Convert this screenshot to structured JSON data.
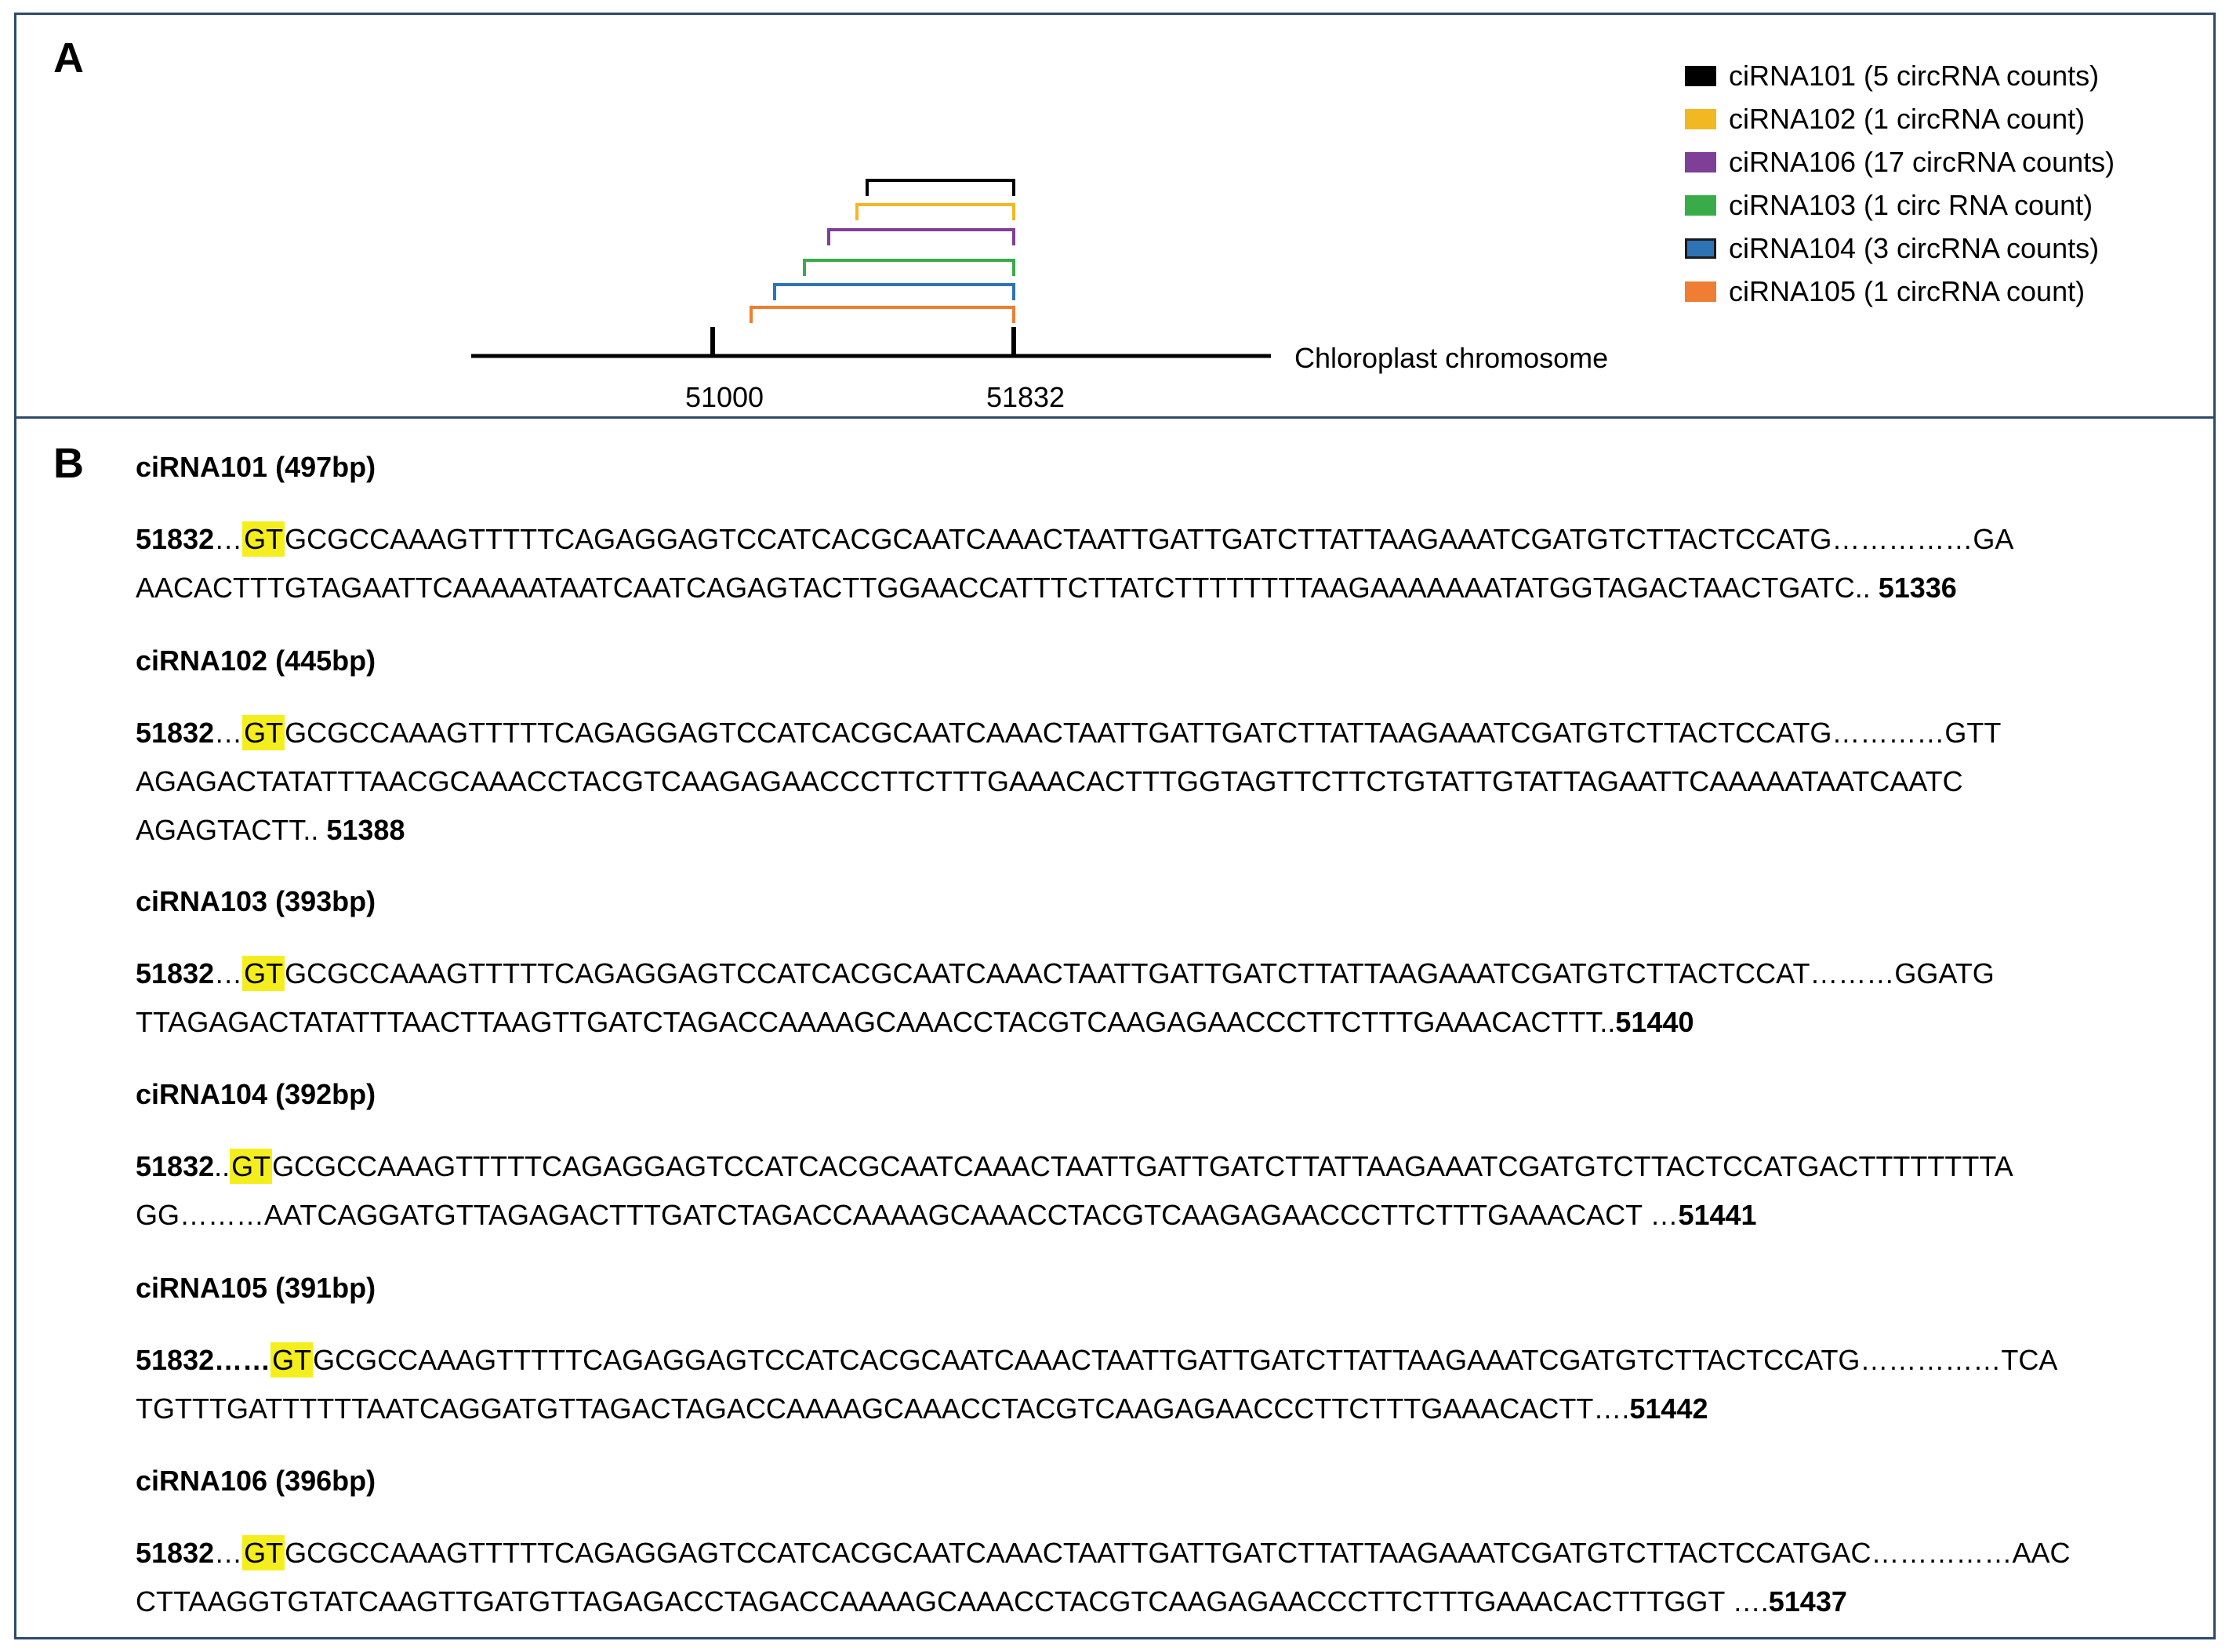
{
  "panel_a": {
    "letter": "A",
    "chromosome_label": "Chloroplast chromosome",
    "ticks": [
      {
        "label": "51000",
        "value": 51000
      },
      {
        "label": "51832",
        "value": 51832
      }
    ],
    "arcs": [
      {
        "name": "ciRNA101",
        "start": 51336,
        "end": 51832,
        "color": "#000000"
      },
      {
        "name": "ciRNA102",
        "start": 51388,
        "end": 51832,
        "color": "#f2b824"
      },
      {
        "name": "ciRNA106",
        "start": 51437,
        "end": 51832,
        "color": "#7f3f98"
      },
      {
        "name": "ciRNA103",
        "start": 51440,
        "end": 51832,
        "color": "#3aab49"
      },
      {
        "name": "ciRNA104",
        "start": 51441,
        "end": 51832,
        "color": "#2e74b5"
      },
      {
        "name": "ciRNA105",
        "start": 51442,
        "end": 51832,
        "color": "#ef7d33"
      }
    ],
    "legend": [
      {
        "name": "ciRNA101",
        "count": "(5 circRNA counts)",
        "color": "#000000"
      },
      {
        "name": "ciRNA102",
        "count": "(1 circRNA count)",
        "color": "#f2b824"
      },
      {
        "name": "ciRNA106",
        "count": "(17 circRNA counts)",
        "color": "#7f3f98"
      },
      {
        "name": "ciRNA103",
        "count": "(1 circ RNA count)",
        "color": "#3aab49"
      },
      {
        "name": "ciRNA104",
        "count": "(3 circRNA counts)",
        "color": "#2e74b5"
      },
      {
        "name": "ciRNA105",
        "count": "(1 circRNA count)",
        "color": "#ef7d33"
      }
    ]
  },
  "panel_b": {
    "letter": "B",
    "entries": [
      {
        "title": "ciRNA101 (497bp)",
        "lines": [
          [
            [
              "b",
              "51832"
            ],
            [
              "t",
              "…"
            ],
            [
              "g",
              "GT"
            ],
            [
              "t",
              "GCGCCAAAGTTTTTCAGAGGAGTCCATCACGCAATCAAACTAATTGATTGATCTTATTAAGAAATCGATGTCTTACTCCATG……………GA"
            ]
          ],
          [
            [
              "t",
              "AACACTTTGTAGAATTCAAAAATAATCAATCAGAGTACTTGGAACCATTTCTTATCTTTTTTTTAAGAAAAAAATATGGTAGACTAACTGATC.. "
            ],
            [
              "b",
              "51336"
            ]
          ]
        ]
      },
      {
        "title": "ciRNA102 (445bp)",
        "lines": [
          [
            [
              "b",
              "51832"
            ],
            [
              "t",
              "…"
            ],
            [
              "g",
              "GT"
            ],
            [
              "t",
              "GCGCCAAAGTTTTTCAGAGGAGTCCATCACGCAATCAAACTAATTGATTGATCTTATTAAGAAATCGATGTCTTACTCCATG…………GTT"
            ]
          ],
          [
            [
              "t",
              "AGAGACTATATTTAACGCAAACCTACGTCAAGAGAACCCTTCTTTGAAACACTTTGGTAGTTCTTCTGTATTGTATTAGAATTCAAAAATAATCAATC"
            ]
          ],
          [
            [
              "t",
              "AGAGTACTT.. "
            ],
            [
              "b",
              "51388"
            ]
          ]
        ]
      },
      {
        "title": "ciRNA103 (393bp)",
        "lines": [
          [
            [
              "b",
              "51832"
            ],
            [
              "t",
              "…"
            ],
            [
              "g",
              "GT"
            ],
            [
              "t",
              "GCGCCAAAGTTTTTCAGAGGAGTCCATCACGCAATCAAACTAATTGATTGATCTTATTAAGAAATCGATGTCTTACTCCAT………GGATG"
            ]
          ],
          [
            [
              "t",
              "TTAGAGACTATATTTAACTTAAGTTGATCTAGACCAAAAGCAAACCTACGTCAAGAGAACCCTTCTTTGAAACACTTT.."
            ],
            [
              "b",
              "51440"
            ]
          ]
        ]
      },
      {
        "title": "ciRNA104 (392bp)",
        "lines": [
          [
            [
              "b",
              "51832"
            ],
            [
              "t",
              ".."
            ],
            [
              "g",
              "GT"
            ],
            [
              "t",
              "GCGCCAAAGTTTTTCAGAGGAGTCCATCACGCAATCAAACTAATTGATTGATCTTATTAAGAAATCGATGTCTTACTCCATGACTTTTTTTTA"
            ]
          ],
          [
            [
              "t",
              "GG………AATCAGGATGTTAGAGACTTTGATCTAGACCAAAAGCAAACCTACGTCAAGAGAACCCTTCTTTGAAACACT …"
            ],
            [
              "b",
              "51441"
            ]
          ]
        ]
      },
      {
        "title": "ciRNA105 (391bp)",
        "lines": [
          [
            [
              "b",
              "51832……"
            ],
            [
              "g",
              "GT"
            ],
            [
              "t",
              "GCGCCAAAGTTTTTCAGAGGAGTCCATCACGCAATCAAACTAATTGATTGATCTTATTAAGAAATCGATGTCTTACTCCATG……………TCA"
            ]
          ],
          [
            [
              "t",
              "TGTTTGATTTTTTAATCAGGATGTTAGACTAGACCAAAAGCAAACCTACGTCAAGAGAACCCTTCTTTGAAACACTT…."
            ],
            [
              "b",
              "51442"
            ]
          ]
        ]
      },
      {
        "title": "ciRNA106 (396bp)",
        "lines": [
          [
            [
              "b",
              "51832"
            ],
            [
              "t",
              "…"
            ],
            [
              "g",
              "GT"
            ],
            [
              "t",
              "GCGCCAAAGTTTTTCAGAGGAGTCCATCACGCAATCAAACTAATTGATTGATCTTATTAAGAAATCGATGTCTTACTCCATGAC……………AAC"
            ]
          ],
          [
            [
              "t",
              "CTTAAGGTGTATCAAGTTGATGTTAGAGACCTAGACCAAAAGCAAACCTACGTCAAGAGAACCCTTCTTTGAAACACTTTGGT …."
            ],
            [
              "b",
              "51437"
            ]
          ]
        ]
      }
    ]
  }
}
